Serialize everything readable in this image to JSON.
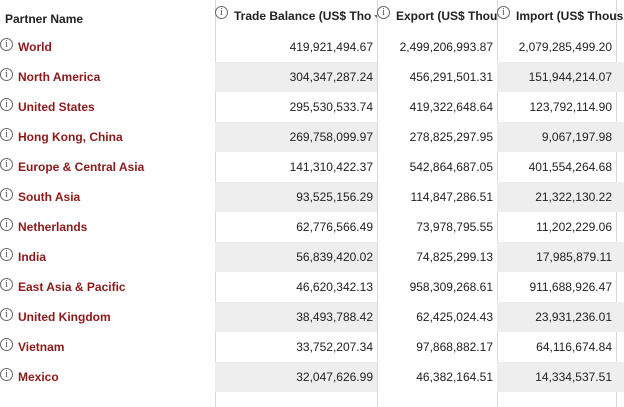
{
  "headers": {
    "partner": "Partner Name",
    "trade_balance": "Trade Balance (US$ Tho",
    "export": "Export (US$ Thous",
    "import": "Import (US$ Thous"
  },
  "rows": [
    {
      "name": "World",
      "trade_balance": "419,921,494.67",
      "export": "2,499,206,993.87",
      "import": "2,079,285,499.20"
    },
    {
      "name": "North America",
      "trade_balance": "304,347,287.24",
      "export": "456,291,501.31",
      "import": "151,944,214.07"
    },
    {
      "name": "United States",
      "trade_balance": "295,530,533.74",
      "export": "419,322,648.64",
      "import": "123,792,114.90"
    },
    {
      "name": "Hong Kong, China",
      "trade_balance": "269,758,099.97",
      "export": "278,825,297.95",
      "import": "9,067,197.98"
    },
    {
      "name": "Europe & Central Asia",
      "trade_balance": "141,310,422.37",
      "export": "542,864,687.05",
      "import": "401,554,264.68"
    },
    {
      "name": "South Asia",
      "trade_balance": "93,525,156.29",
      "export": "114,847,286.51",
      "import": "21,322,130.22"
    },
    {
      "name": "Netherlands",
      "trade_balance": "62,776,566.49",
      "export": "73,978,795.55",
      "import": "11,202,229.06"
    },
    {
      "name": "India",
      "trade_balance": "56,839,420.02",
      "export": "74,825,299.13",
      "import": "17,985,879.11"
    },
    {
      "name": "East Asia & Pacific",
      "trade_balance": "46,620,342.13",
      "export": "958,309,268.61",
      "import": "911,688,926.47"
    },
    {
      "name": "United Kingdom",
      "trade_balance": "38,493,788.42",
      "export": "62,425,024.43",
      "import": "23,931,236.01"
    },
    {
      "name": "Vietnam",
      "trade_balance": "33,752,207.34",
      "export": "97,868,882.17",
      "import": "64,116,674.84"
    },
    {
      "name": "Mexico",
      "trade_balance": "32,047,626.99",
      "export": "46,382,164.51",
      "import": "14,334,537.51"
    }
  ],
  "icons": {
    "info": "info-circle-icon",
    "sort": "sort-descending-icon"
  }
}
